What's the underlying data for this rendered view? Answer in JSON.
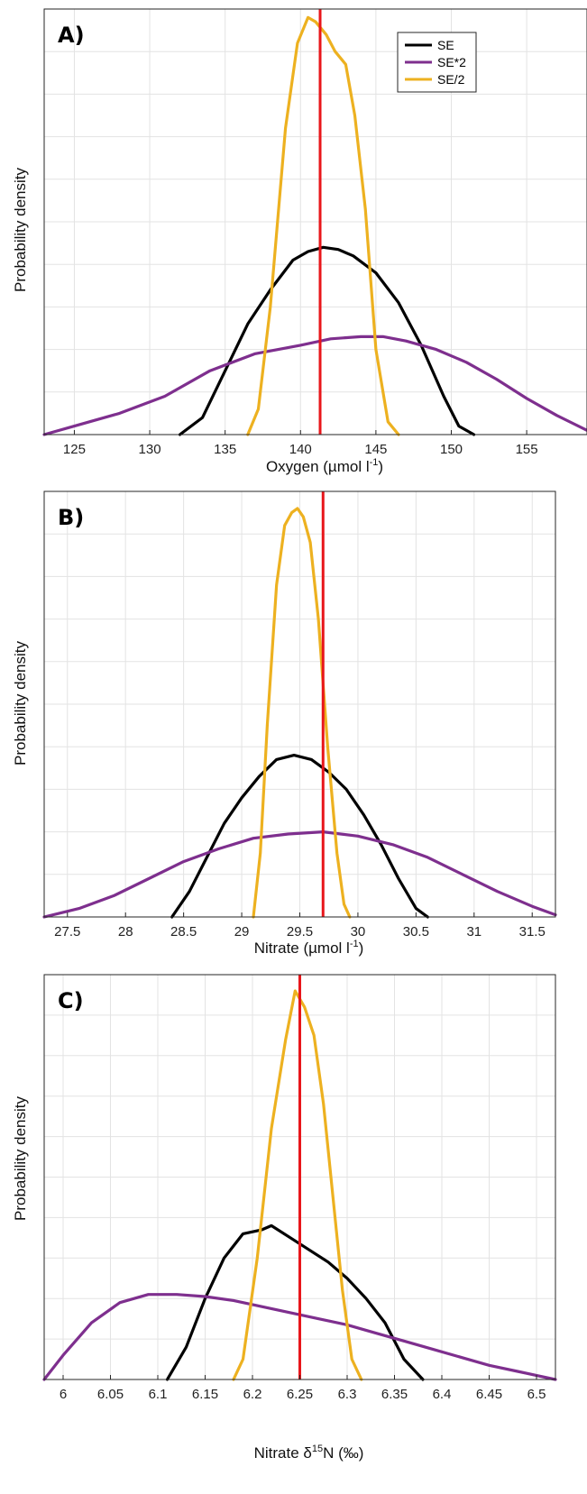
{
  "chart_data": [
    {
      "type": "line",
      "panel_label": "A)",
      "xlabel": "Oxygen (µmol l",
      "xlabel_sup": "-1",
      "xlabel_suffix": ")",
      "ylabel": "Probability density",
      "xlim": [
        123,
        159
      ],
      "ylim": [
        0,
        1.0
      ],
      "xticks": [
        125,
        130,
        135,
        140,
        145,
        150,
        155
      ],
      "xtick_labels": [
        "125",
        "130",
        "135",
        "140",
        "145",
        "150",
        "155"
      ],
      "grid": true,
      "legend": {
        "placement": "top-right",
        "entries": [
          "SE",
          "SE*2",
          "SE/2"
        ]
      },
      "vline": {
        "x": 141.3,
        "color": "#e8161b"
      },
      "series": [
        {
          "name": "SE",
          "color": "#000000",
          "x": [
            132.0,
            133.5,
            135.0,
            136.5,
            138.0,
            139.5,
            140.5,
            141.5,
            142.5,
            143.5,
            145.0,
            146.5,
            148.0,
            149.5,
            150.5,
            151.5
          ],
          "y": [
            0.0,
            0.04,
            0.15,
            0.26,
            0.34,
            0.41,
            0.43,
            0.44,
            0.435,
            0.42,
            0.38,
            0.31,
            0.21,
            0.09,
            0.02,
            0.0
          ]
        },
        {
          "name": "SE*2",
          "color": "#7e2f8e",
          "x": [
            123,
            125,
            128,
            131,
            134,
            137,
            140,
            142,
            144,
            145.5,
            147,
            149,
            151,
            153,
            155,
            157,
            159
          ],
          "y": [
            0.0,
            0.02,
            0.05,
            0.09,
            0.15,
            0.19,
            0.21,
            0.225,
            0.23,
            0.23,
            0.22,
            0.2,
            0.17,
            0.13,
            0.085,
            0.045,
            0.01
          ]
        },
        {
          "name": "SE/2",
          "color": "#edb120",
          "x": [
            136.5,
            137.2,
            138.0,
            139.0,
            139.8,
            140.5,
            141.0,
            141.7,
            142.3,
            143.0,
            143.6,
            144.3,
            145.0,
            145.8,
            146.5
          ],
          "y": [
            0.0,
            0.06,
            0.3,
            0.72,
            0.92,
            0.98,
            0.97,
            0.94,
            0.9,
            0.87,
            0.75,
            0.53,
            0.2,
            0.03,
            0.0
          ]
        }
      ]
    },
    {
      "type": "line",
      "panel_label": "B)",
      "xlabel": "Nitrate (µmol l",
      "xlabel_sup": "-1",
      "xlabel_suffix": ")",
      "ylabel": "Probability density",
      "xlim": [
        27.3,
        31.7
      ],
      "ylim": [
        0,
        1.0
      ],
      "xticks": [
        27.5,
        28,
        28.5,
        29,
        29.5,
        30,
        30.5,
        31,
        31.5
      ],
      "xtick_labels": [
        "27.5",
        "28",
        "28.5",
        "29",
        "29.5",
        "30",
        "30.5",
        "31",
        "31.5"
      ],
      "grid": true,
      "vline": {
        "x": 29.7,
        "color": "#e8161b"
      },
      "series": [
        {
          "name": "SE",
          "color": "#000000",
          "x": [
            28.4,
            28.55,
            28.7,
            28.85,
            29.0,
            29.15,
            29.3,
            29.45,
            29.6,
            29.75,
            29.9,
            30.05,
            30.2,
            30.35,
            30.5,
            30.6
          ],
          "y": [
            0.0,
            0.06,
            0.14,
            0.22,
            0.28,
            0.33,
            0.37,
            0.38,
            0.37,
            0.34,
            0.3,
            0.24,
            0.17,
            0.09,
            0.02,
            0.0
          ]
        },
        {
          "name": "SE*2",
          "color": "#7e2f8e",
          "x": [
            27.3,
            27.6,
            27.9,
            28.2,
            28.5,
            28.8,
            29.1,
            29.4,
            29.7,
            30.0,
            30.3,
            30.6,
            30.9,
            31.2,
            31.5,
            31.7
          ],
          "y": [
            0.0,
            0.02,
            0.05,
            0.09,
            0.13,
            0.16,
            0.185,
            0.195,
            0.2,
            0.19,
            0.17,
            0.14,
            0.1,
            0.06,
            0.025,
            0.005
          ]
        },
        {
          "name": "SE/2",
          "color": "#edb120",
          "x": [
            29.1,
            29.16,
            29.22,
            29.3,
            29.37,
            29.43,
            29.48,
            29.53,
            29.59,
            29.66,
            29.74,
            29.82,
            29.88,
            29.93
          ],
          "y": [
            0.0,
            0.15,
            0.45,
            0.78,
            0.92,
            0.95,
            0.96,
            0.94,
            0.88,
            0.7,
            0.4,
            0.15,
            0.03,
            0.0
          ]
        }
      ]
    },
    {
      "type": "line",
      "panel_label": "C)",
      "xlabel": "Nitrate δ",
      "xlabel_sup": "15",
      "xlabel_suffix": "N (‰)",
      "ylabel": "Probability density",
      "xlim": [
        5.98,
        6.52
      ],
      "ylim": [
        0,
        1.0
      ],
      "xticks": [
        6,
        6.05,
        6.1,
        6.15,
        6.2,
        6.25,
        6.3,
        6.35,
        6.4,
        6.45,
        6.5
      ],
      "xtick_labels": [
        "6",
        "6.05",
        "6.1",
        "6.15",
        "6.2",
        "6.25",
        "6.3",
        "6.35",
        "6.4",
        "6.45",
        "6.5"
      ],
      "grid": true,
      "vline": {
        "x": 6.25,
        "color": "#e8161b"
      },
      "series": [
        {
          "name": "SE",
          "color": "#000000",
          "x": [
            6.11,
            6.13,
            6.15,
            6.17,
            6.19,
            6.21,
            6.22,
            6.24,
            6.26,
            6.28,
            6.3,
            6.32,
            6.34,
            6.36,
            6.38
          ],
          "y": [
            0.0,
            0.08,
            0.2,
            0.3,
            0.36,
            0.37,
            0.38,
            0.35,
            0.32,
            0.29,
            0.25,
            0.2,
            0.14,
            0.05,
            0.0
          ]
        },
        {
          "name": "SE*2",
          "color": "#7e2f8e",
          "x": [
            5.98,
            6.0,
            6.03,
            6.06,
            6.09,
            6.12,
            6.15,
            6.18,
            6.21,
            6.24,
            6.27,
            6.3,
            6.33,
            6.36,
            6.39,
            6.42,
            6.45,
            6.48,
            6.52
          ],
          "y": [
            0.0,
            0.06,
            0.14,
            0.19,
            0.21,
            0.21,
            0.205,
            0.195,
            0.18,
            0.165,
            0.15,
            0.135,
            0.115,
            0.095,
            0.075,
            0.055,
            0.035,
            0.02,
            0.0
          ]
        },
        {
          "name": "SE/2",
          "color": "#edb120",
          "x": [
            6.18,
            6.19,
            6.205,
            6.22,
            6.235,
            6.245,
            6.255,
            6.265,
            6.275,
            6.285,
            6.295,
            6.305,
            6.315
          ],
          "y": [
            0.0,
            0.05,
            0.3,
            0.62,
            0.84,
            0.96,
            0.92,
            0.85,
            0.68,
            0.45,
            0.22,
            0.05,
            0.0
          ]
        }
      ]
    }
  ]
}
